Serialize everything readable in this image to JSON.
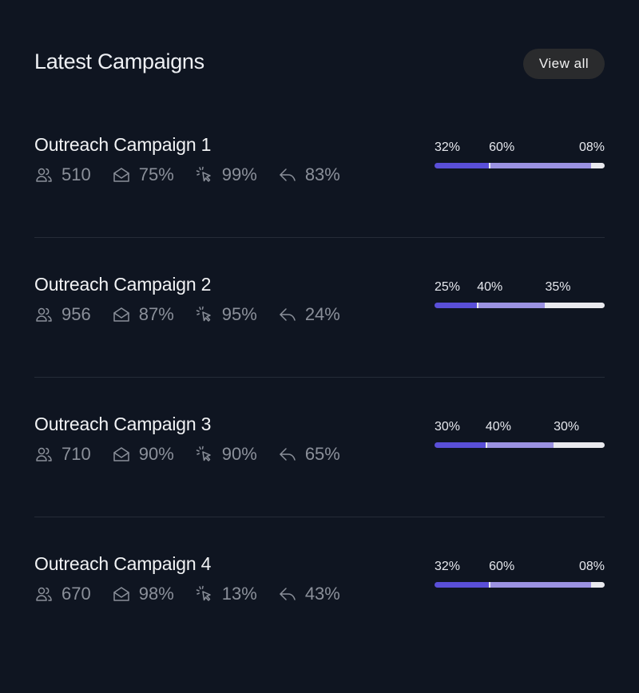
{
  "header": {
    "title": "Latest Campaigns",
    "button": "View all"
  },
  "campaigns": [
    {
      "name": "Outreach Campaign 1",
      "stats": [
        "510",
        "75%",
        "99%",
        "83%"
      ],
      "segments": [
        {
          "value": 32,
          "label": "32%"
        },
        {
          "value": 60,
          "label": "60%"
        },
        {
          "value": 8,
          "label": "08%"
        }
      ]
    },
    {
      "name": "Outreach Campaign 2",
      "stats": [
        "956",
        "87%",
        "95%",
        "24%"
      ],
      "segments": [
        {
          "value": 25,
          "label": "25%"
        },
        {
          "value": 40,
          "label": "40%"
        },
        {
          "value": 35,
          "label": "35%"
        }
      ]
    },
    {
      "name": "Outreach Campaign 3",
      "stats": [
        "710",
        "90%",
        "90%",
        "65%"
      ],
      "segments": [
        {
          "value": 30,
          "label": "30%"
        },
        {
          "value": 40,
          "label": "40%"
        },
        {
          "value": 30,
          "label": "30%"
        }
      ]
    },
    {
      "name": "Outreach Campaign 4",
      "stats": [
        "670",
        "98%",
        "13%",
        "43%"
      ],
      "segments": [
        {
          "value": 32,
          "label": "32%"
        },
        {
          "value": 60,
          "label": "60%"
        },
        {
          "value": 8,
          "label": "08%"
        }
      ]
    }
  ]
}
